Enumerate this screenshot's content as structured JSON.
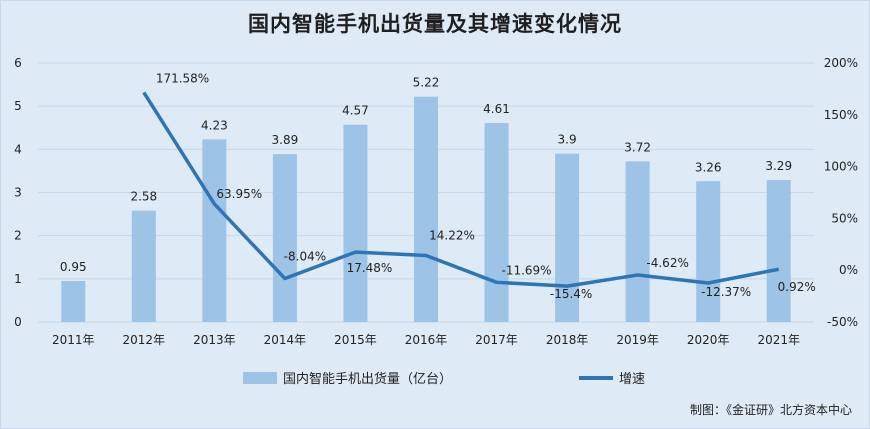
{
  "chart_data": {
    "type": "bar+line",
    "title": "国内智能手机出货量及其增速变化情况",
    "categories": [
      "2011年",
      "2012年",
      "2013年",
      "2014年",
      "2015年",
      "2016年",
      "2017年",
      "2018年",
      "2019年",
      "2020年",
      "2021年"
    ],
    "series": [
      {
        "name": "国内智能手机出货量（亿台）",
        "type": "bar",
        "axis": "left",
        "color": "#9dc3e6",
        "values": [
          0.95,
          2.58,
          4.23,
          3.89,
          4.57,
          5.22,
          4.61,
          3.9,
          3.72,
          3.26,
          3.29
        ],
        "labels": [
          "0.95",
          "2.58",
          "4.23",
          "3.89",
          "4.57",
          "5.22",
          "4.61",
          "3.9",
          "3.72",
          "3.26",
          "3.29"
        ]
      },
      {
        "name": "增速",
        "type": "line",
        "axis": "right",
        "color": "#2e75b6",
        "values": [
          null,
          171.58,
          63.95,
          -8.04,
          17.48,
          14.22,
          -11.69,
          -15.4,
          -4.62,
          -12.37,
          0.92
        ],
        "labels": [
          null,
          "171.58%",
          "63.95%",
          "-8.04%",
          "17.48%",
          "14.22%",
          "-11.69%",
          "-15.4%",
          "-4.62%",
          "-12.37%",
          "0.92%"
        ]
      }
    ],
    "y_left": {
      "min": 0,
      "max": 6,
      "ticks": [
        "0",
        "1",
        "2",
        "3",
        "4",
        "5",
        "6"
      ]
    },
    "y_right": {
      "min": -50,
      "max": 200,
      "ticks": [
        "-50%",
        "0%",
        "50%",
        "100%",
        "150%",
        "200%"
      ]
    },
    "grid": true,
    "legend_position": "bottom"
  },
  "source": "制图：《金证研》北方资本中心"
}
